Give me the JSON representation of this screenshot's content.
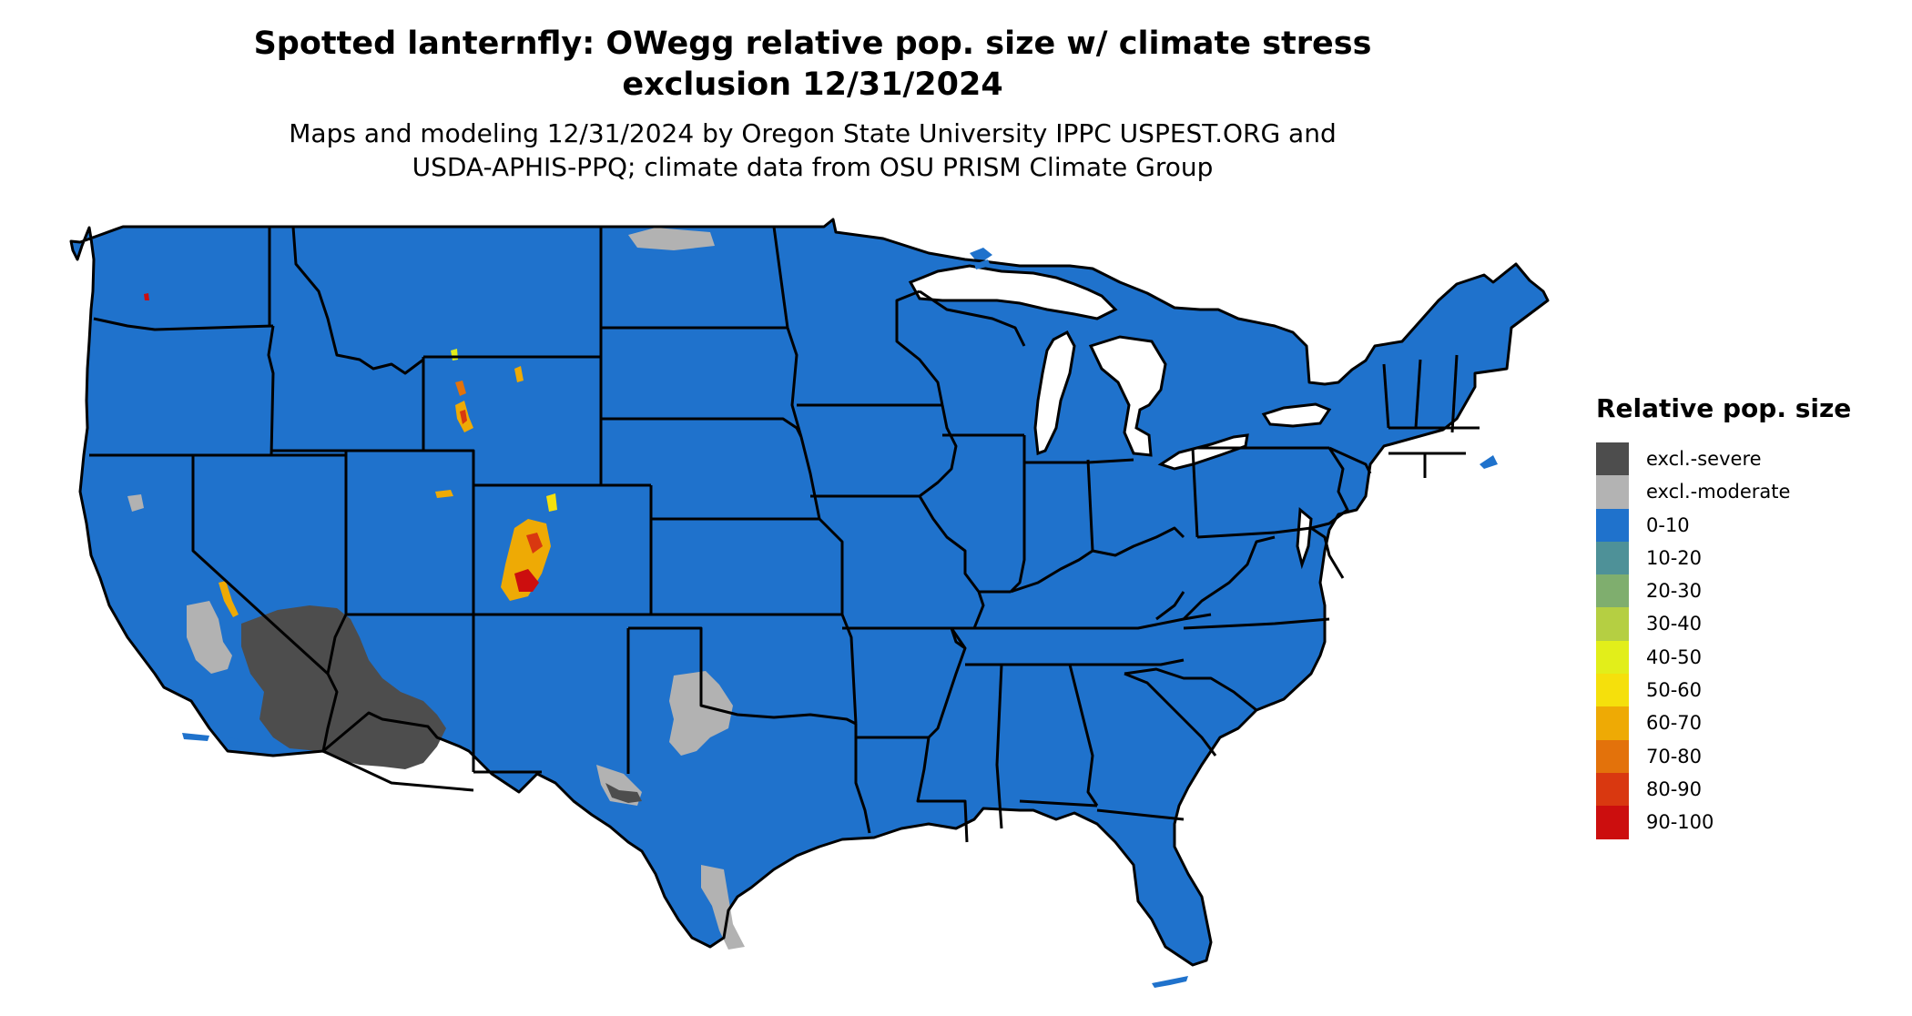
{
  "title_line1": "Spotted lanternfly: OWegg relative pop. size w/ climate stress",
  "title_line2": "exclusion 12/31/2024",
  "subtitle_line1": "Maps and modeling 12/31/2024 by Oregon State University IPPC USPEST.ORG and",
  "subtitle_line2": "USDA-APHIS-PPQ; climate data from OSU PRISM Climate Group",
  "colors": {
    "base_range": "#1f72cc",
    "state_border": "#000000",
    "excl_severe": "#4d4d4d",
    "excl_moderate": "#b2b2b2"
  },
  "legend": {
    "title": "Relative pop. size",
    "items": [
      {
        "label": "excl.-severe",
        "color": "#4d4d4d"
      },
      {
        "label": "excl.-moderate",
        "color": "#b3b3b3"
      },
      {
        "label": "0-10",
        "color": "#1f72cc"
      },
      {
        "label": "10-20",
        "color": "#4e9198"
      },
      {
        "label": "20-30",
        "color": "#7fae6e"
      },
      {
        "label": "30-40",
        "color": "#b5cf42"
      },
      {
        "label": "40-50",
        "color": "#e2ee1a"
      },
      {
        "label": "50-60",
        "color": "#f5e00c"
      },
      {
        "label": "60-70",
        "color": "#eeaa05"
      },
      {
        "label": "70-80",
        "color": "#e3720b"
      },
      {
        "label": "80-90",
        "color": "#d93810"
      },
      {
        "label": "90-100",
        "color": "#cc0e0e"
      }
    ]
  }
}
